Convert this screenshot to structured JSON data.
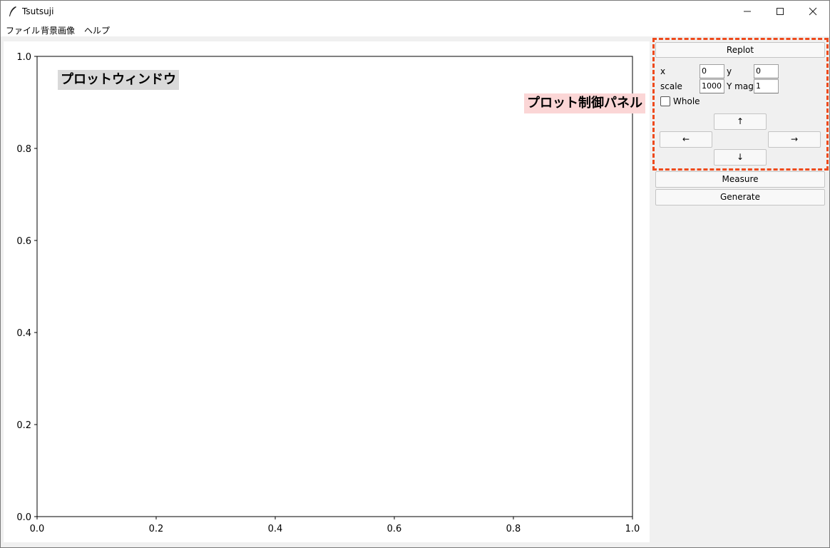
{
  "window": {
    "title": "Tsutsuji"
  },
  "menu": [
    "ファイル",
    "背景画像",
    "ヘルプ"
  ],
  "plot": {
    "annotation": "プロットウィンドウ",
    "x_ticks": [
      "0.0",
      "0.2",
      "0.4",
      "0.6",
      "0.8",
      "1.0"
    ],
    "y_ticks": [
      "0.0",
      "0.2",
      "0.4",
      "0.6",
      "0.8",
      "1.0"
    ],
    "xlim": [
      0,
      1
    ],
    "ylim": [
      0,
      1
    ]
  },
  "panel": {
    "annotation": "プロット制御パネル",
    "replot_label": "Replot",
    "x_label": "x",
    "x_value": "0",
    "y_label": "y",
    "y_value": "0",
    "scale_label": "scale",
    "scale_value": "1000",
    "ymag_label": "Y mag.",
    "ymag_value": "1",
    "whole_label": "Whole",
    "up_label": "↑",
    "left_label": "←",
    "right_label": "→",
    "down_label": "↓",
    "measure_label": "Measure",
    "generate_label": "Generate",
    "accent_color": "#ee4a1c"
  }
}
